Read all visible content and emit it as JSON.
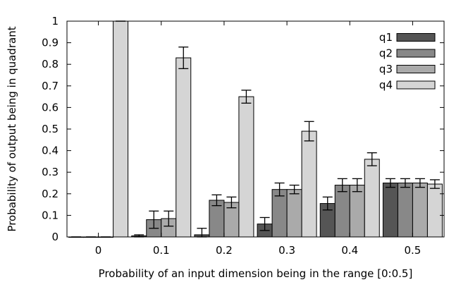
{
  "chart_data": {
    "type": "bar",
    "xlabel": "Probability of an input dimension being in the range [0:0.5]",
    "ylabel": "Probability of output being in quadrant",
    "categories": [
      "0",
      "0.1",
      "0.2",
      "0.3",
      "0.4",
      "0.5"
    ],
    "ylim": [
      0,
      1
    ],
    "yticks": [
      "0",
      "0.1",
      "0.2",
      "0.3",
      "0.4",
      "0.5",
      "0.6",
      "0.7",
      "0.8",
      "0.9",
      "1"
    ],
    "legend_position": "top-right",
    "grid": false,
    "error_bars": true,
    "series": [
      {
        "name": "q1",
        "color": "#555555",
        "values": [
          0.0,
          0.005,
          0.01,
          0.06,
          0.155,
          0.25
        ],
        "errors": [
          0.0,
          0.005,
          0.03,
          0.03,
          0.03,
          0.02
        ]
      },
      {
        "name": "q2",
        "color": "#888888",
        "values": [
          0.0,
          0.08,
          0.17,
          0.22,
          0.24,
          0.25
        ],
        "errors": [
          0.0,
          0.04,
          0.025,
          0.03,
          0.03,
          0.02
        ]
      },
      {
        "name": "q3",
        "color": "#aaaaaa",
        "values": [
          0.0,
          0.085,
          0.16,
          0.22,
          0.24,
          0.25
        ],
        "errors": [
          0.0,
          0.035,
          0.025,
          0.02,
          0.03,
          0.02
        ]
      },
      {
        "name": "q4",
        "color": "#d5d5d5",
        "values": [
          1.0,
          0.83,
          0.65,
          0.49,
          0.36,
          0.245
        ],
        "errors": [
          0.0,
          0.05,
          0.03,
          0.045,
          0.03,
          0.02
        ]
      }
    ]
  }
}
